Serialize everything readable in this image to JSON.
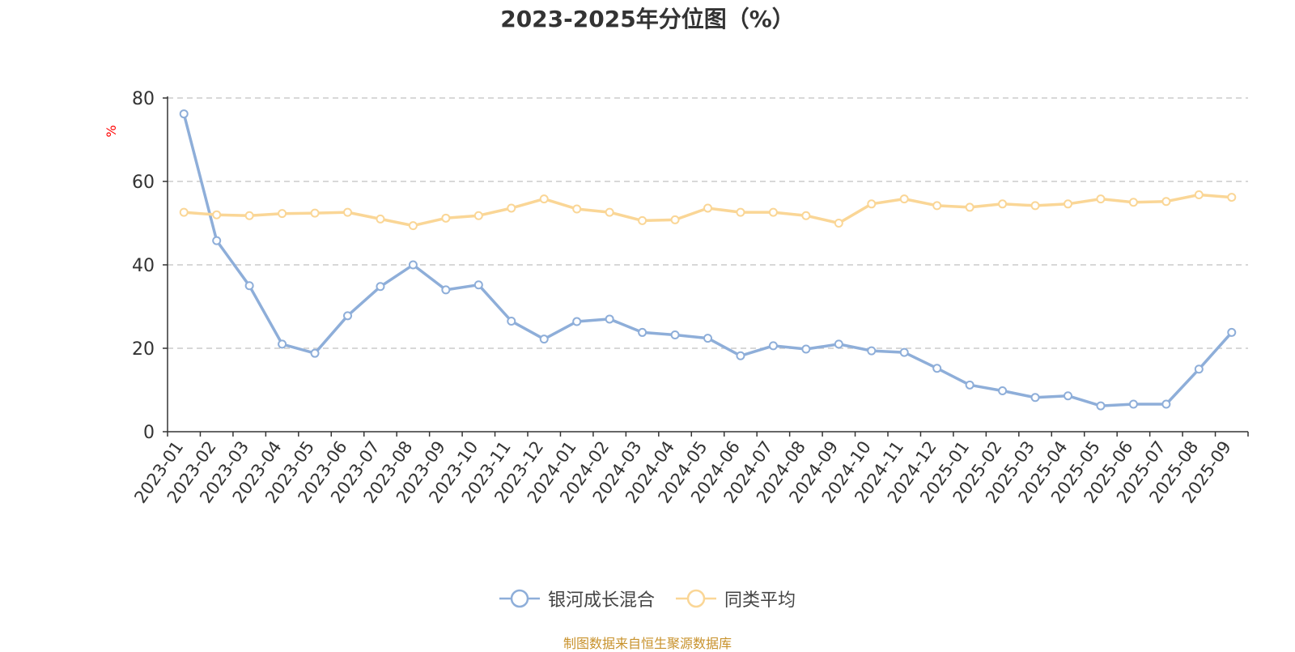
{
  "chart_data": {
    "type": "line",
    "title": "2023-2025年分位图（%）",
    "ylabel": "%",
    "xlabel": "",
    "ylim": [
      0,
      80
    ],
    "yticks": [
      0,
      20,
      40,
      60,
      80
    ],
    "grid": true,
    "legend_position": "bottom-center",
    "categories": [
      "2023-01",
      "2023-02",
      "2023-03",
      "2023-04",
      "2023-05",
      "2023-06",
      "2023-07",
      "2023-08",
      "2023-09",
      "2023-10",
      "2023-11",
      "2023-12",
      "2024-01",
      "2024-02",
      "2024-03",
      "2024-04",
      "2024-05",
      "2024-06",
      "2024-07",
      "2024-08",
      "2024-09",
      "2024-10",
      "2024-11",
      "2024-12",
      "2025-01",
      "2025-02",
      "2025-03",
      "2025-04",
      "2025-05",
      "2025-06",
      "2025-07",
      "2025-08",
      "2025-09"
    ],
    "series": [
      {
        "name": "银河成长混合",
        "color": "#8eaed9",
        "values": [
          76.2,
          45.8,
          35.0,
          21.0,
          18.8,
          27.8,
          34.8,
          40.0,
          34.0,
          35.2,
          26.5,
          22.2,
          26.4,
          27.0,
          23.8,
          23.2,
          22.4,
          18.2,
          20.6,
          19.8,
          21.0,
          19.4,
          19.0,
          15.2,
          11.2,
          9.8,
          8.2,
          8.6,
          6.2,
          6.6,
          6.6,
          15.0,
          23.8
        ]
      },
      {
        "name": "同类平均",
        "color": "#fad696",
        "values": [
          52.6,
          52.0,
          51.8,
          52.3,
          52.4,
          52.6,
          51.0,
          49.4,
          51.2,
          51.8,
          53.6,
          55.8,
          53.4,
          52.6,
          50.6,
          50.8,
          53.6,
          52.6,
          52.6,
          51.8,
          50.0,
          54.6,
          55.8,
          54.2,
          53.8,
          54.6,
          54.2,
          54.6,
          55.8,
          55.0,
          55.2,
          56.8,
          56.2
        ]
      }
    ]
  },
  "footer": {
    "source": "制图数据来自恒生聚源数据库"
  }
}
